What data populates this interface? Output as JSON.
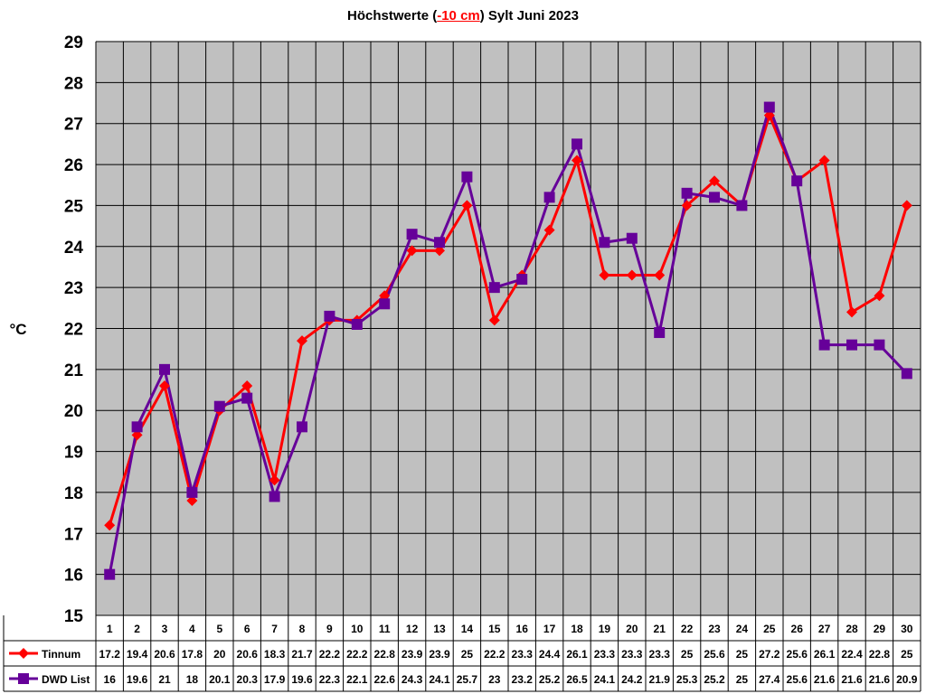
{
  "chart_data": {
    "type": "line",
    "title": {
      "prefix": "Höchstwerte (",
      "highlight": "-10 cm",
      "suffix": ") Sylt Juni 2023"
    },
    "ylabel": "°C",
    "xlabel": "",
    "ylim": [
      15,
      29
    ],
    "yticks": [
      15,
      16,
      17,
      18,
      19,
      20,
      21,
      22,
      23,
      24,
      25,
      26,
      27,
      28,
      29
    ],
    "grid": true,
    "legend": "table-left",
    "categories": [
      "1",
      "2",
      "3",
      "4",
      "5",
      "6",
      "7",
      "8",
      "9",
      "10",
      "11",
      "12",
      "13",
      "14",
      "15",
      "16",
      "17",
      "18",
      "19",
      "20",
      "21",
      "22",
      "23",
      "24",
      "25",
      "26",
      "27",
      "28",
      "29",
      "30"
    ],
    "series": [
      {
        "name": "Tinnum",
        "color": "#ff0000",
        "marker": "diamond",
        "values": [
          17.2,
          19.4,
          20.6,
          17.8,
          20,
          20.6,
          18.3,
          21.7,
          22.2,
          22.2,
          22.8,
          23.9,
          23.9,
          25,
          22.2,
          23.3,
          24.4,
          26.1,
          23.3,
          23.3,
          23.3,
          25,
          25.6,
          25,
          27.2,
          25.6,
          26.1,
          22.4,
          22.8,
          25
        ]
      },
      {
        "name": "DWD List",
        "color": "#660099",
        "marker": "square",
        "values": [
          16,
          19.6,
          21,
          18,
          20.1,
          20.3,
          17.9,
          19.6,
          22.3,
          22.1,
          22.6,
          24.3,
          24.1,
          25.7,
          23,
          23.2,
          25.2,
          26.5,
          24.1,
          24.2,
          21.9,
          25.3,
          25.2,
          25,
          27.4,
          25.6,
          21.6,
          21.6,
          21.6,
          20.9
        ]
      }
    ],
    "colors": {
      "plot_bg": "#c0c0c0",
      "grid": "#000000",
      "title_highlight": "#ff0000"
    }
  }
}
